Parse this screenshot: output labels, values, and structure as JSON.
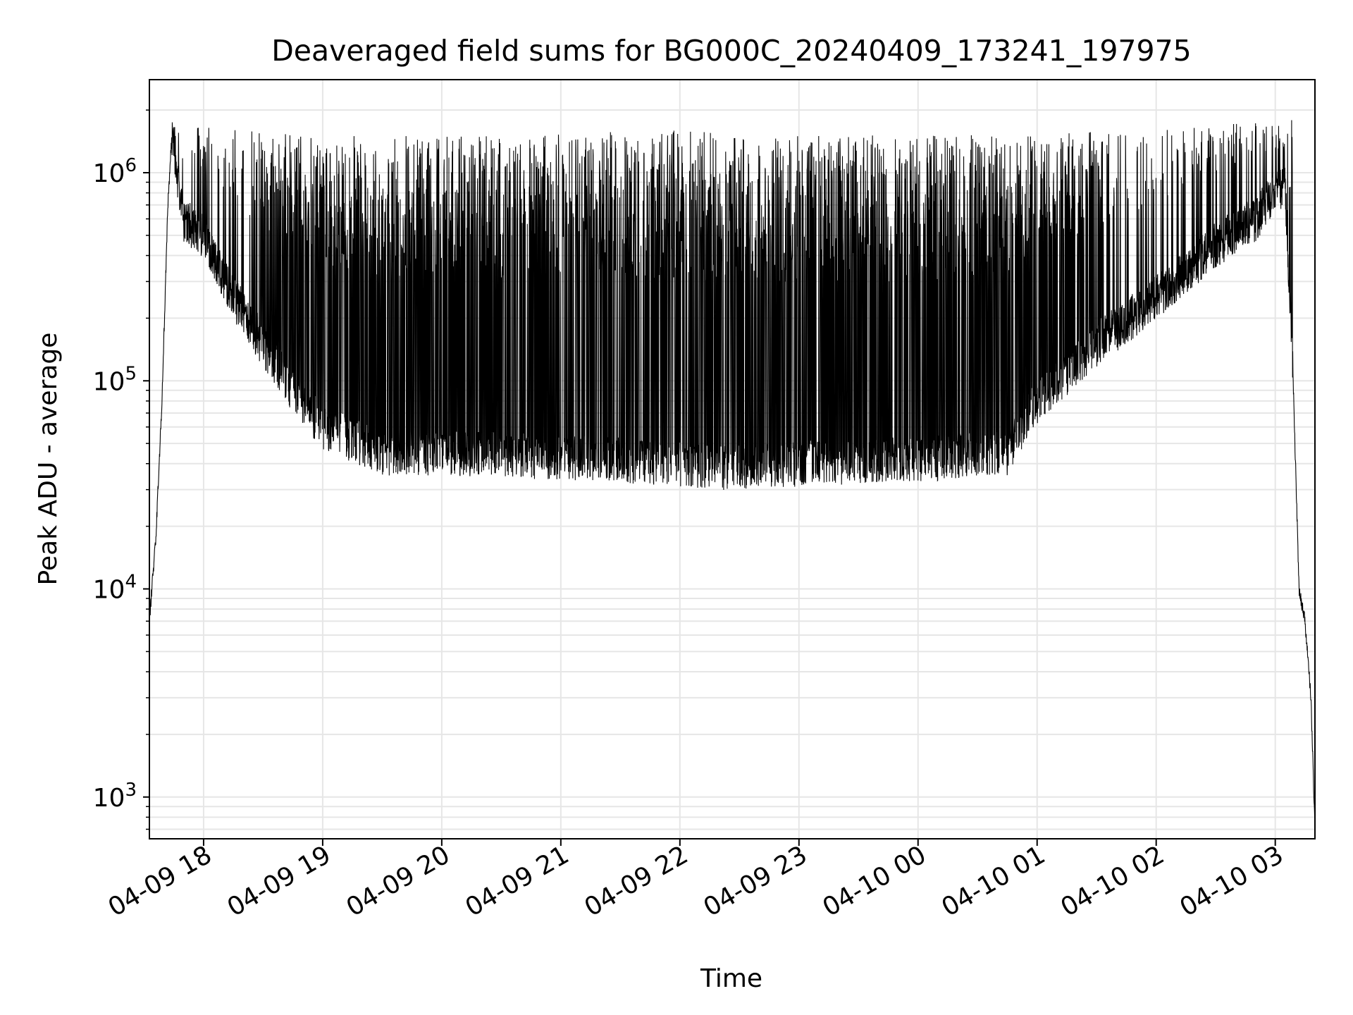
{
  "chart_data": {
    "type": "line",
    "title": "Deaveraged field sums for BG000C_20240409_173241_197975",
    "xlabel": "Time",
    "ylabel": "Peak ADU - average",
    "yscale": "log",
    "ylim": [
      630,
      2800000
    ],
    "xlim": [
      "2024-04-09 17:32:41",
      "2024-04-10 03:20:00"
    ],
    "grid": true,
    "x_ticks": [
      {
        "value": "2024-04-09 18:00",
        "label": "04-09 18"
      },
      {
        "value": "2024-04-09 19:00",
        "label": "04-09 19"
      },
      {
        "value": "2024-04-09 20:00",
        "label": "04-09 20"
      },
      {
        "value": "2024-04-09 21:00",
        "label": "04-09 21"
      },
      {
        "value": "2024-04-09 22:00",
        "label": "04-09 22"
      },
      {
        "value": "2024-04-09 23:00",
        "label": "04-09 23"
      },
      {
        "value": "2024-04-10 00:00",
        "label": "04-10 00"
      },
      {
        "value": "2024-04-10 01:00",
        "label": "04-10 01"
      },
      {
        "value": "2024-04-10 02:00",
        "label": "04-10 02"
      },
      {
        "value": "2024-04-10 03:00",
        "label": "04-10 03"
      }
    ],
    "y_ticks": [
      {
        "value": 1000,
        "base": "10",
        "exp": "3"
      },
      {
        "value": 10000,
        "base": "10",
        "exp": "4"
      },
      {
        "value": 100000,
        "base": "10",
        "exp": "5"
      },
      {
        "value": 1000000,
        "base": "10",
        "exp": "6"
      }
    ],
    "line_color": "#000000",
    "grid_color": "#e6e6e6",
    "series": [
      {
        "baseline_points": [
          [
            "2024-04-09 17:32:41",
            7000
          ],
          [
            "2024-04-09 17:36:00",
            18000
          ],
          [
            "2024-04-09 17:39:00",
            80000
          ],
          [
            "2024-04-09 17:42:00",
            700000
          ],
          [
            "2024-04-09 17:44:00",
            1500000
          ],
          [
            "2024-04-09 17:50:00",
            600000
          ],
          [
            "2024-04-09 18:00:00",
            500000
          ],
          [
            "2024-04-09 18:15:00",
            250000
          ],
          [
            "2024-04-09 18:30:00",
            150000
          ],
          [
            "2024-04-09 18:45:00",
            90000
          ],
          [
            "2024-04-09 19:00:00",
            60000
          ],
          [
            "2024-04-09 19:30:00",
            45000
          ],
          [
            "2024-04-09 20:00:00",
            45000
          ],
          [
            "2024-04-09 21:00:00",
            43000
          ],
          [
            "2024-04-09 22:00:00",
            40000
          ],
          [
            "2024-04-09 22:30:00",
            38000
          ],
          [
            "2024-04-09 23:00:00",
            40000
          ],
          [
            "2024-04-10 00:00:00",
            42000
          ],
          [
            "2024-04-10 00:45:00",
            45000
          ],
          [
            "2024-04-10 01:00:00",
            80000
          ],
          [
            "2024-04-10 01:30:00",
            150000
          ],
          [
            "2024-04-10 02:00:00",
            250000
          ],
          [
            "2024-04-10 02:30:00",
            450000
          ],
          [
            "2024-04-10 02:50:00",
            600000
          ],
          [
            "2024-04-10 03:00:00",
            800000
          ],
          [
            "2024-04-10 03:05:00",
            900000
          ],
          [
            "2024-04-10 03:09:00",
            100000
          ],
          [
            "2024-04-10 03:12:00",
            10000
          ],
          [
            "2024-04-10 03:15:00",
            7000
          ],
          [
            "2024-04-10 03:18:00",
            3000
          ],
          [
            "2024-04-10 03:20:00",
            700
          ]
        ],
        "peak_envelope": [
          [
            "2024-04-09 17:45:00",
            1700000
          ],
          [
            "2024-04-09 19:00:00",
            1500000
          ],
          [
            "2024-04-09 20:00:00",
            1500000
          ],
          [
            "2024-04-09 22:00:00",
            1600000
          ],
          [
            "2024-04-10 00:00:00",
            1500000
          ],
          [
            "2024-04-10 02:00:00",
            1600000
          ],
          [
            "2024-04-10 03:00:00",
            1800000
          ]
        ]
      }
    ]
  }
}
